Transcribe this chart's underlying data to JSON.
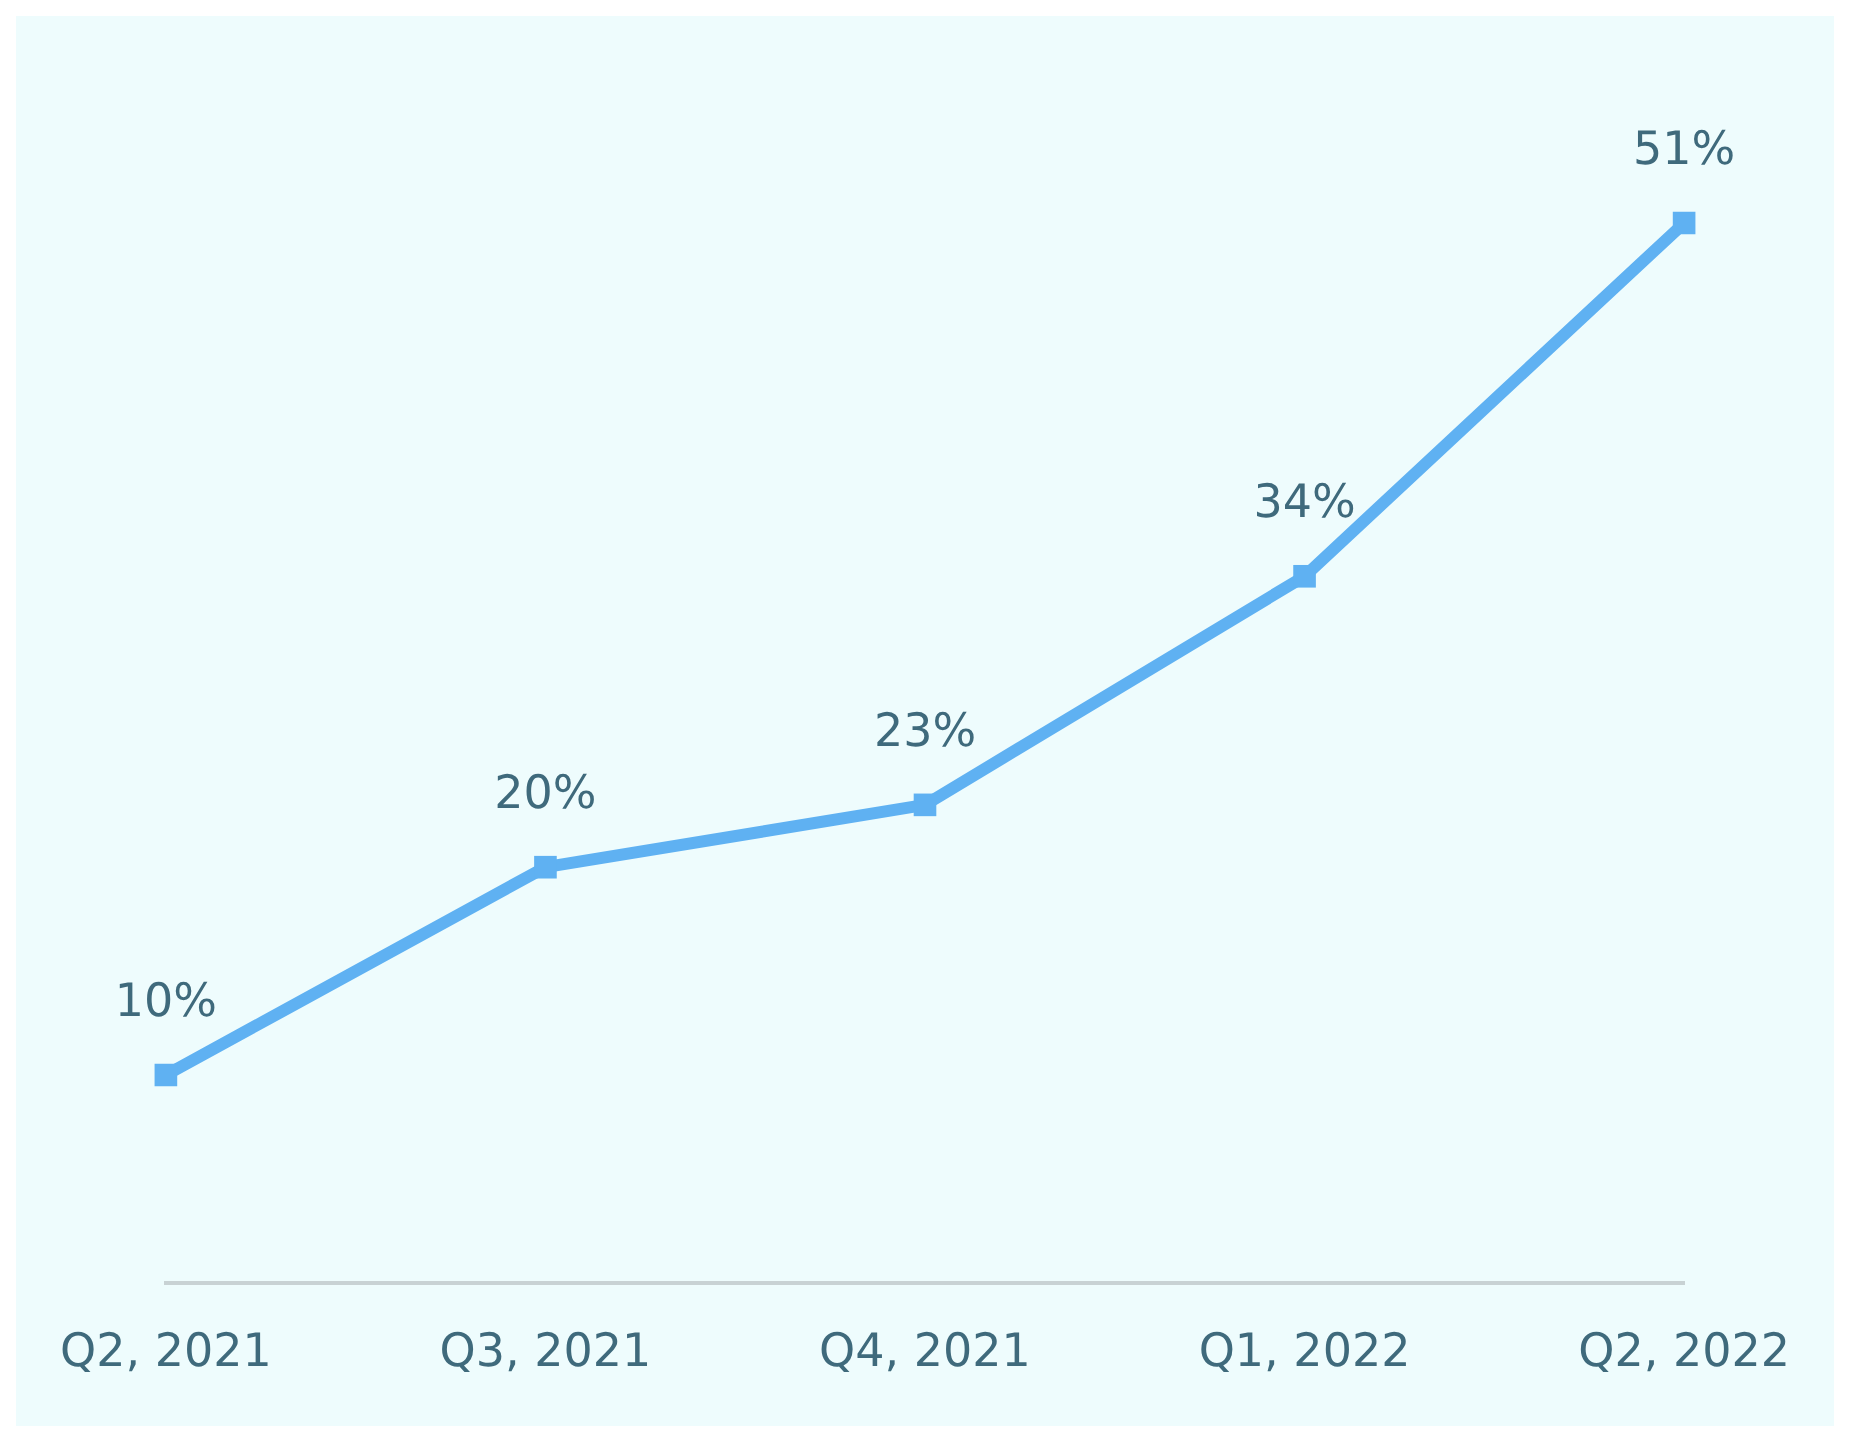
{
  "chart_data": {
    "type": "line",
    "categories": [
      "Q2, 2021",
      "Q3, 2021",
      "Q4, 2021",
      "Q1, 2022",
      "Q2, 2022"
    ],
    "series": [
      {
        "color": "#5fb1f2",
        "values": [
          10,
          20,
          23,
          34,
          51
        ],
        "value_labels": [
          "10%",
          "20%",
          "23%",
          "34%",
          "51%"
        ]
      }
    ],
    "tick_labels": "x",
    "grid": false,
    "legend": false,
    "marker": "square",
    "line_style": "solid"
  }
}
